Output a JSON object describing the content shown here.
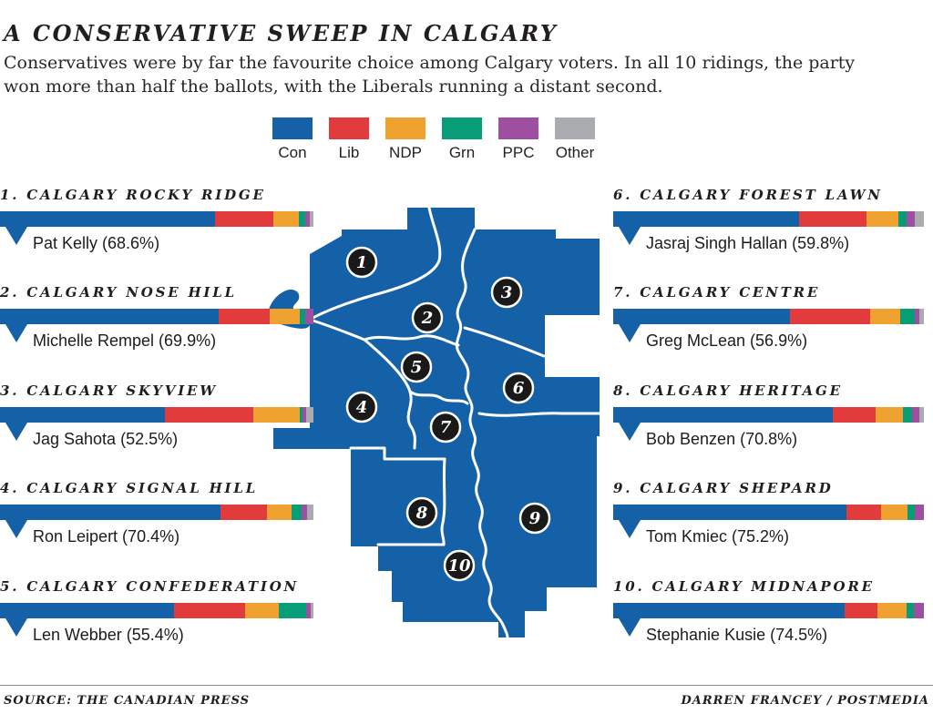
{
  "header": {
    "title": "A CONSERVATIVE SWEEP IN CALGARY",
    "subtitle": "Conservatives were by far the favourite choice among Calgary voters. In all 10 ridings, the party won more than half the ballots, with the Liberals running a distant second."
  },
  "legend": {
    "parties": [
      {
        "id": "con",
        "label": "Con",
        "color": "#1561a8"
      },
      {
        "id": "lib",
        "label": "Lib",
        "color": "#e23b3c"
      },
      {
        "id": "ndp",
        "label": "NDP",
        "color": "#efa22f"
      },
      {
        "id": "grn",
        "label": "Grn",
        "color": "#079d77"
      },
      {
        "id": "ppc",
        "label": "PPC",
        "color": "#9e4fa1"
      },
      {
        "id": "other",
        "label": "Other",
        "color": "#a9abae"
      }
    ]
  },
  "chart_data": {
    "type": "bar",
    "stacked": true,
    "orientation": "horizontal",
    "unit": "percent of vote",
    "parties": [
      "Con",
      "Lib",
      "NDP",
      "Grn",
      "PPC",
      "Other"
    ],
    "ridings": [
      {
        "num": "1",
        "title": "1. CALGARY ROCKY RIDGE",
        "winner": "Pat Kelly",
        "winner_label": "Pat Kelly (68.6%)",
        "values": [
          68.6,
          18.6,
          8.2,
          1.9,
          1.5,
          1.2
        ]
      },
      {
        "num": "2",
        "title": "2. CALGARY NOSE HILL",
        "winner": "Michelle Rempel",
        "winner_label": "Michelle Rempel (69.9%)",
        "values": [
          69.9,
          16.1,
          9.6,
          1.9,
          2.5,
          0
        ]
      },
      {
        "num": "3",
        "title": "3. CALGARY SKYVIEW",
        "winner": "Jag Sahota",
        "winner_label": "Jag Sahota (52.5%)",
        "values": [
          52.5,
          28.4,
          14.6,
          1.1,
          1.1,
          2.3
        ]
      },
      {
        "num": "4",
        "title": "4. CALGARY SIGNAL HILL",
        "winner": "Ron Leipert",
        "winner_label": "Ron Leipert (70.4%)",
        "values": [
          70.4,
          14.7,
          8.0,
          3.1,
          1.8,
          2.0
        ]
      },
      {
        "num": "5",
        "title": "5. CALGARY CONFEDERATION",
        "winner": "Len Webber",
        "winner_label": "Len Webber (55.4%)",
        "values": [
          55.4,
          22.9,
          10.6,
          8.7,
          1.4,
          1.0
        ]
      },
      {
        "num": "6",
        "title": "6. CALGARY FOREST LAWN",
        "winner": "Jasraj Singh Hallan",
        "winner_label": "Jasraj Singh Hallan (59.8%)",
        "values": [
          59.8,
          21.7,
          10.2,
          2.6,
          2.9,
          2.8
        ]
      },
      {
        "num": "7",
        "title": "7. CALGARY CENTRE",
        "winner": "Greg McLean",
        "winner_label": "Greg McLean (56.9%)",
        "values": [
          56.9,
          25.9,
          9.6,
          4.6,
          1.5,
          1.5
        ]
      },
      {
        "num": "8",
        "title": "8. CALGARY HERITAGE",
        "winner": "Bob Benzen",
        "winner_label": "Bob Benzen (70.8%)",
        "values": [
          70.8,
          13.6,
          8.9,
          3.0,
          2.2,
          1.5
        ]
      },
      {
        "num": "9",
        "title": "9. CALGARY SHEPARD",
        "winner": "Tom Kmiec",
        "winner_label": "Tom Kmiec (75.2%)",
        "values": [
          75.2,
          10.9,
          8.6,
          2.4,
          2.9,
          0
        ]
      },
      {
        "num": "10",
        "title": "10. CALGARY MIDNAPORE",
        "winner": "Stephanie Kusie",
        "winner_label": "Stephanie Kusie (74.5%)",
        "values": [
          74.5,
          10.6,
          9.4,
          2.4,
          3.1,
          0
        ]
      }
    ]
  },
  "map": {
    "fill": "#1561a8",
    "label_circle_color": "#191919",
    "numbers": [
      "1",
      "2",
      "3",
      "4",
      "5",
      "6",
      "7",
      "8",
      "9",
      "10"
    ]
  },
  "footer": {
    "source": "SOURCE: THE CANADIAN PRESS",
    "credit": "DARREN FRANCEY / POSTMEDIA"
  }
}
